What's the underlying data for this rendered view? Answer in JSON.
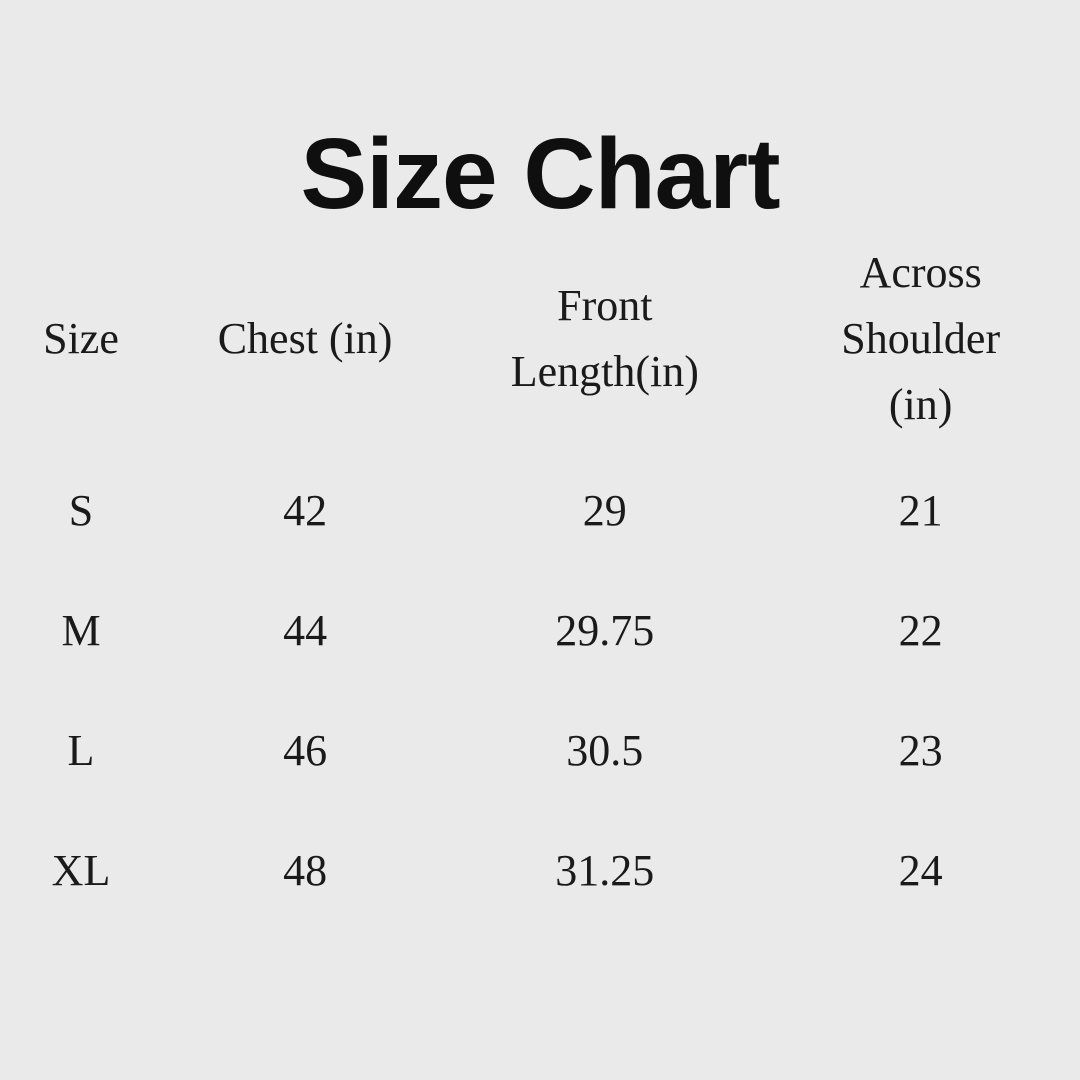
{
  "page": {
    "background_color": "#e9eae9",
    "text_color": "#1a1a1a",
    "title_color": "#0f0f0f"
  },
  "title": "Size Chart",
  "table": {
    "columns": [
      {
        "label": "Size",
        "lines": [
          "Size"
        ]
      },
      {
        "label": "Chest (in)",
        "lines": [
          "Chest (in)"
        ]
      },
      {
        "label": "Front Length(in)",
        "lines": [
          "Front",
          "Length(in)"
        ]
      },
      {
        "label": "Across Shoulder (in)",
        "lines": [
          "Across",
          "Shoulder",
          "(in)"
        ]
      }
    ],
    "rows": [
      [
        "S",
        "42",
        "29",
        "21"
      ],
      [
        "M",
        "44",
        "29.75",
        "22"
      ],
      [
        "L",
        "46",
        "30.5",
        "23"
      ],
      [
        "XL",
        "48",
        "31.25",
        "24"
      ]
    ]
  },
  "chart_data": {
    "type": "table",
    "title": "Size Chart",
    "columns": [
      "Size",
      "Chest (in)",
      "Front Length(in)",
      "Across Shoulder (in)"
    ],
    "rows": [
      {
        "size": "S",
        "chest_in": 42,
        "front_length_in": 29,
        "across_shoulder_in": 21
      },
      {
        "size": "M",
        "chest_in": 44,
        "front_length_in": 29.75,
        "across_shoulder_in": 22
      },
      {
        "size": "L",
        "chest_in": 46,
        "front_length_in": 30.5,
        "across_shoulder_in": 23
      },
      {
        "size": "XL",
        "chest_in": 48,
        "front_length_in": 31.25,
        "across_shoulder_in": 24
      }
    ],
    "layout": {
      "grid": false,
      "borders": false,
      "alignment": "center"
    }
  }
}
